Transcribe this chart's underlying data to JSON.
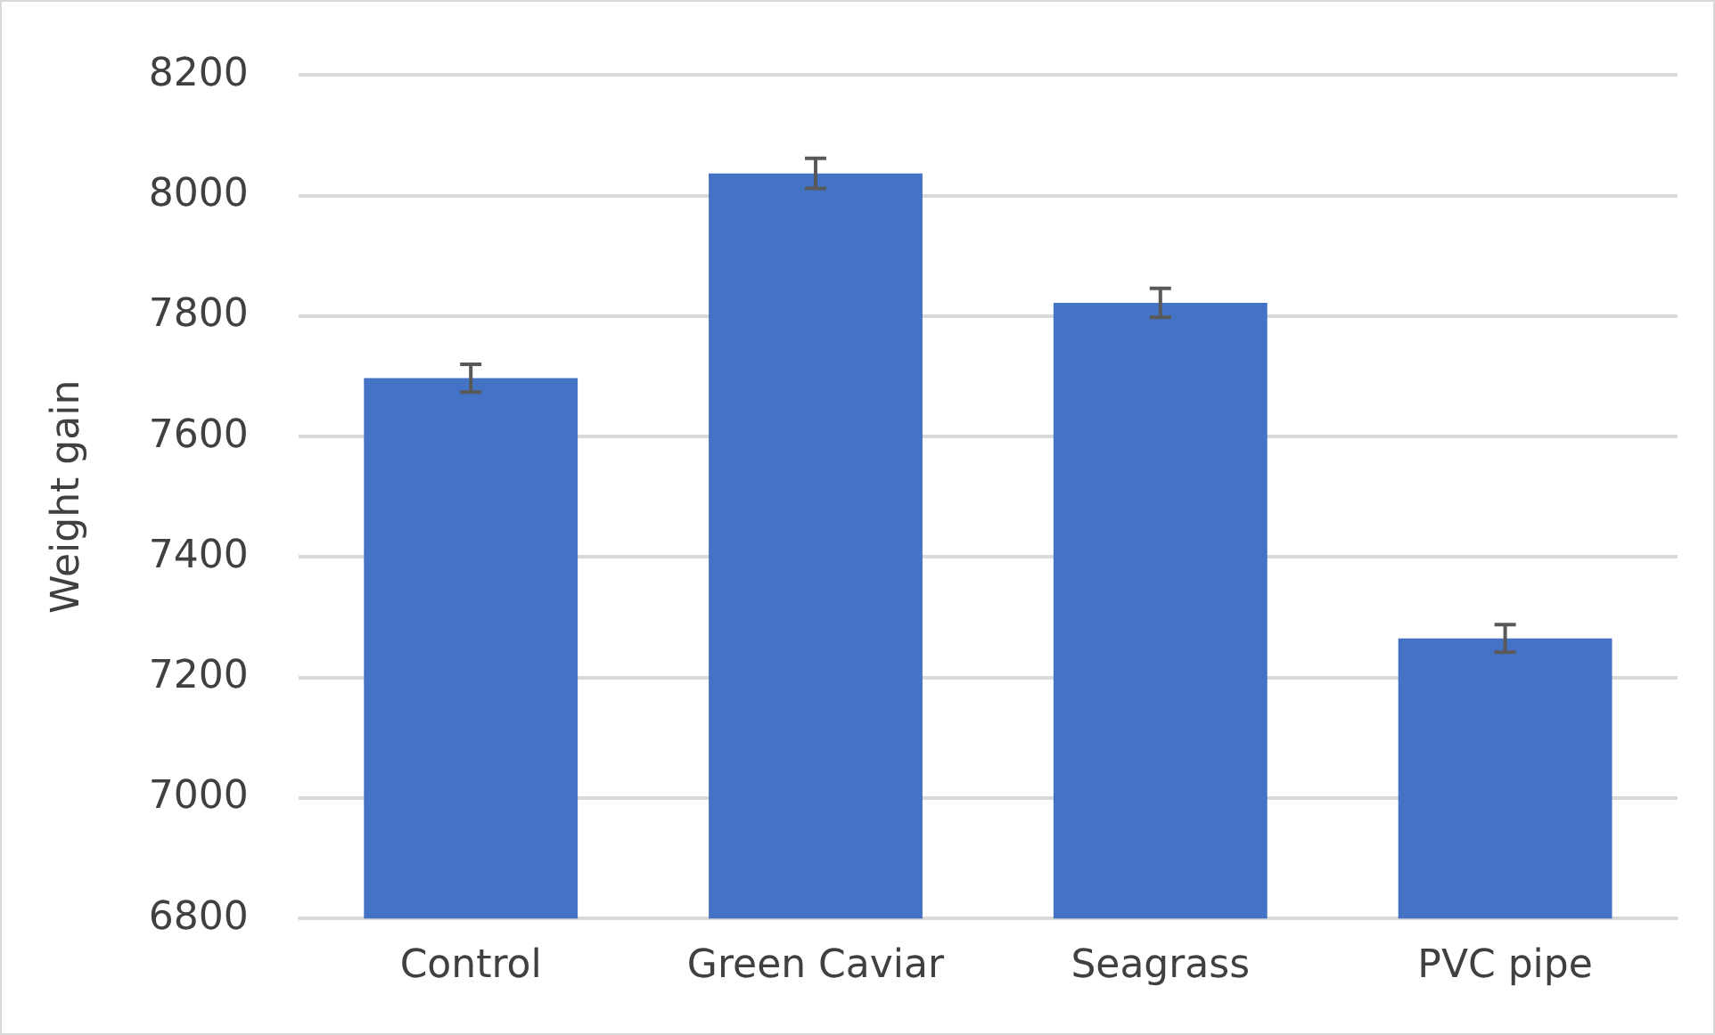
{
  "chart_data": {
    "type": "bar",
    "ylabel": "Weight gain",
    "categories": [
      "Control",
      "Green Caviar",
      "Seagrass",
      "PVC pipe"
    ],
    "values": [
      7697,
      8037,
      7822,
      7265
    ],
    "errors": [
      23,
      25,
      24,
      23
    ],
    "color": "#4472c4",
    "ylim": [
      6800,
      8200
    ],
    "yticks": [
      6800,
      7000,
      7200,
      7400,
      7600,
      7800,
      8000,
      8200
    ],
    "grid": "y",
    "legend": false
  }
}
